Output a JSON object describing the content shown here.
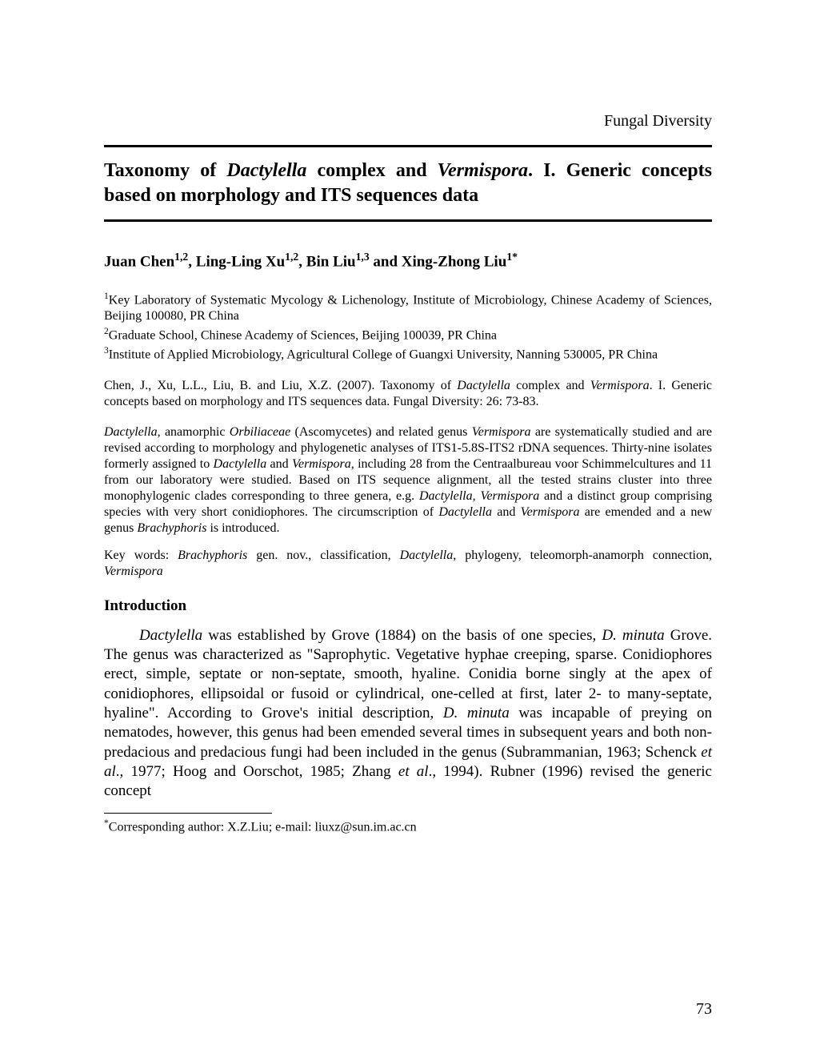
{
  "journal": "Fungal Diversity",
  "title_part1": "Taxonomy of ",
  "title_ital1": "Dactylella",
  "title_part2": " complex and ",
  "title_ital2": "Vermispora",
  "title_part3": ". I. Generic concepts based on morphology and ITS sequences data",
  "authors": {
    "a1": "Juan Chen",
    "a1_sup": "1,2",
    "a2": ", Ling-Ling Xu",
    "a2_sup": "1,2",
    "a3": ", Bin Liu",
    "a3_sup": "1,3",
    "a4": " and Xing-Zhong Liu",
    "a4_sup": "1*"
  },
  "affiliations": {
    "aff1_sup": "1",
    "aff1": "Key Laboratory of Systematic Mycology & Lichenology, Institute of Microbiology, Chinese Academy of Sciences, Beijing 100080, PR China",
    "aff2_sup": "2",
    "aff2": "Graduate School, Chinese Academy of Sciences, Beijing 100039, PR China",
    "aff3_sup": "3",
    "aff3": "Institute of Applied Microbiology, Agricultural College of Guangxi University, Nanning 530005, PR China"
  },
  "citation": {
    "c1": "Chen, J., Xu, L.L., Liu, B. and Liu, X.Z. (2007). Taxonomy of ",
    "c_ital1": "Dactylella",
    "c2": " complex and ",
    "c_ital2": "Vermispora",
    "c3": ". I. Generic concepts based on morphology and ITS sequences data. Fungal Diversity: 26: 73-83."
  },
  "abstract": {
    "ab_ital1": "Dactylella",
    "ab1": ", anamorphic ",
    "ab_ital2": "Orbiliaceae",
    "ab2": " (Ascomycetes) and related genus ",
    "ab_ital3": "Vermispora",
    "ab3": " are systematically studied and are revised according to morphology and phylogenetic analyses of ITS1-5.8S-ITS2 rDNA sequences. Thirty-nine isolates formerly assigned to ",
    "ab_ital4": "Dactylella",
    "ab4": " and ",
    "ab_ital5": "Vermispora",
    "ab5": ", including 28 from the Centraalbureau voor Schimmelcultures and 11 from our laboratory were studied. Based on ITS sequence alignment, all the tested strains cluster into three monophylogenic clades corresponding to three genera, e.g. ",
    "ab_ital6": "Dactylella",
    "ab6": ", ",
    "ab_ital7": "Vermispora",
    "ab7": " and a distinct group comprising species with very short conidiophores. The circumscription of ",
    "ab_ital8": "Dactylella",
    "ab8": " and ",
    "ab_ital9": "Vermispora",
    "ab9": " are emended and a new genus ",
    "ab_ital10": "Brachyphoris",
    "ab10": " is introduced."
  },
  "keywords": {
    "kw1": "Key words: ",
    "kw_ital1": "Brachyphoris",
    "kw2": " gen. nov., classification, ",
    "kw_ital2": "Dactylella",
    "kw3": ", phylogeny, teleomorph-anamorph connection, ",
    "kw_ital3": "Vermispora"
  },
  "section_heading": "Introduction",
  "body": {
    "b_ital1": "Dactylella",
    "b1": " was established by Grove (1884) on the basis of one species, ",
    "b_ital2": "D. minuta",
    "b2": " Grove. The genus was characterized as \"Saprophytic. Vegetative hyphae creeping, sparse. Conidiophores erect, simple, septate or non-septate, smooth, hyaline. Conidia borne singly at the apex of conidiophores, ellipsoidal or fusoid or cylindrical, one-celled at first, later 2- to many-septate, hyaline\". According to Grove's initial description, ",
    "b_ital3": "D. minuta",
    "b3": " was incapable of preying on nematodes, however, this genus had been emended several times in subsequent years and both non-predacious and predacious fungi had been included in the genus (Subrammanian, 1963; Schenck ",
    "b_ital4": "et al",
    "b4": "., 1977; Hoog and Oorschot, 1985; Zhang ",
    "b_ital5": "et al",
    "b5": "., 1994). Rubner (1996) revised the generic concept"
  },
  "footnote": {
    "fn_sup": "*",
    "fn": "Corresponding author: X.Z.Liu; e-mail: liuxz@sun.im.ac.cn"
  },
  "page_number": "73",
  "colors": {
    "text": "#000000",
    "background": "#ffffff",
    "rule": "#000000"
  },
  "typography": {
    "body_fontsize_pt": 14,
    "title_fontsize_pt": 18,
    "small_fontsize_pt": 12,
    "font_family": "Times New Roman"
  }
}
